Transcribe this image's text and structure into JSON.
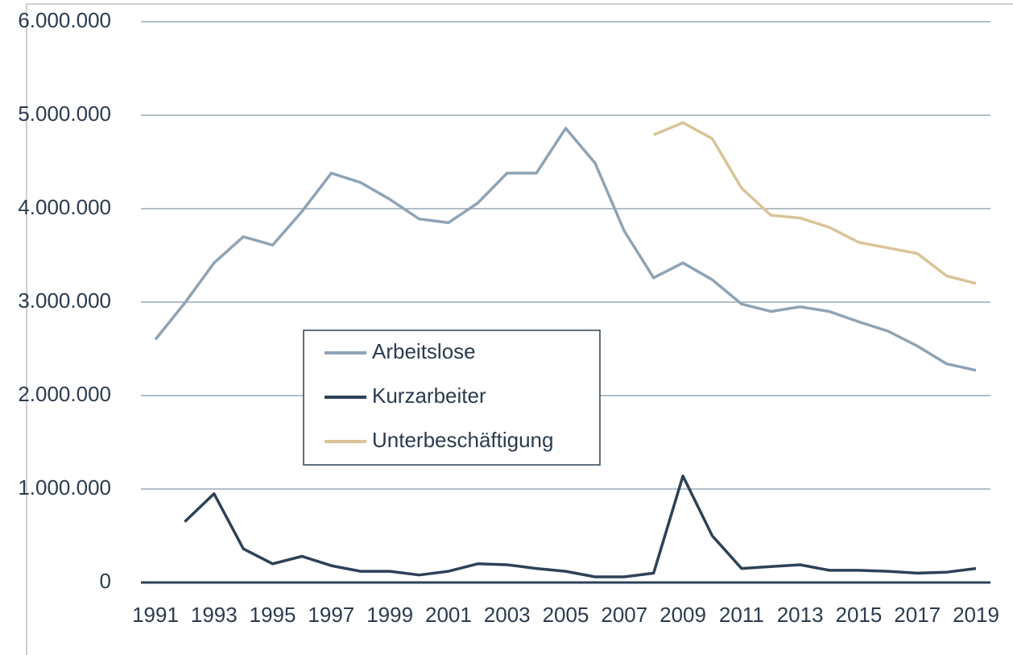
{
  "chart_data": {
    "type": "line",
    "categories": [
      "1991",
      null,
      "1993",
      null,
      "1995",
      null,
      "1997",
      null,
      "1999",
      null,
      "2001",
      null,
      "2003",
      null,
      "2005",
      null,
      "2007",
      null,
      "2009",
      null,
      "2011",
      null,
      "2013",
      null,
      "2015",
      null,
      "2017",
      null,
      "2019"
    ],
    "series": [
      {
        "name": "Arbeitslose",
        "color": "#8fa3b5",
        "values": [
          2600000,
          2990000,
          3420000,
          3700000,
          3610000,
          3970000,
          4380000,
          4280000,
          4100000,
          3890000,
          3850000,
          4060000,
          4380000,
          4380000,
          4860000,
          4490000,
          3760000,
          3260000,
          3420000,
          3240000,
          2980000,
          2900000,
          2950000,
          2900000,
          2790000,
          2690000,
          2530000,
          2340000,
          2270000
        ]
      },
      {
        "name": "Kurzarbeiter",
        "color": "#2d4157",
        "values": [
          null,
          650000,
          950000,
          360000,
          200000,
          280000,
          180000,
          120000,
          120000,
          80000,
          120000,
          200000,
          190000,
          150000,
          120000,
          60000,
          60000,
          100000,
          1140000,
          500000,
          150000,
          170000,
          190000,
          130000,
          130000,
          120000,
          100000,
          110000,
          150000
        ]
      },
      {
        "name": "Unterbeschäftigung",
        "color": "#d9c397",
        "values": [
          null,
          null,
          null,
          null,
          null,
          null,
          null,
          null,
          null,
          null,
          null,
          null,
          null,
          null,
          null,
          null,
          null,
          4790000,
          4920000,
          4750000,
          4220000,
          3930000,
          3900000,
          3800000,
          3640000,
          3580000,
          3520000,
          3280000,
          3200000
        ]
      }
    ],
    "ylim": [
      0,
      6000000
    ],
    "yticks": [
      0,
      {
        "value": 1000000,
        "label": "1.000.000"
      },
      {
        "value": 2000000,
        "label": "2.000.000"
      },
      {
        "value": 3000000,
        "label": "3.000.000"
      },
      {
        "value": 4000000,
        "label": "4.000.000"
      },
      {
        "value": 5000000,
        "label": "5.000.000"
      },
      {
        "value": 6000000,
        "label": "6.000.000"
      }
    ],
    "grid": true,
    "legend": "center"
  }
}
